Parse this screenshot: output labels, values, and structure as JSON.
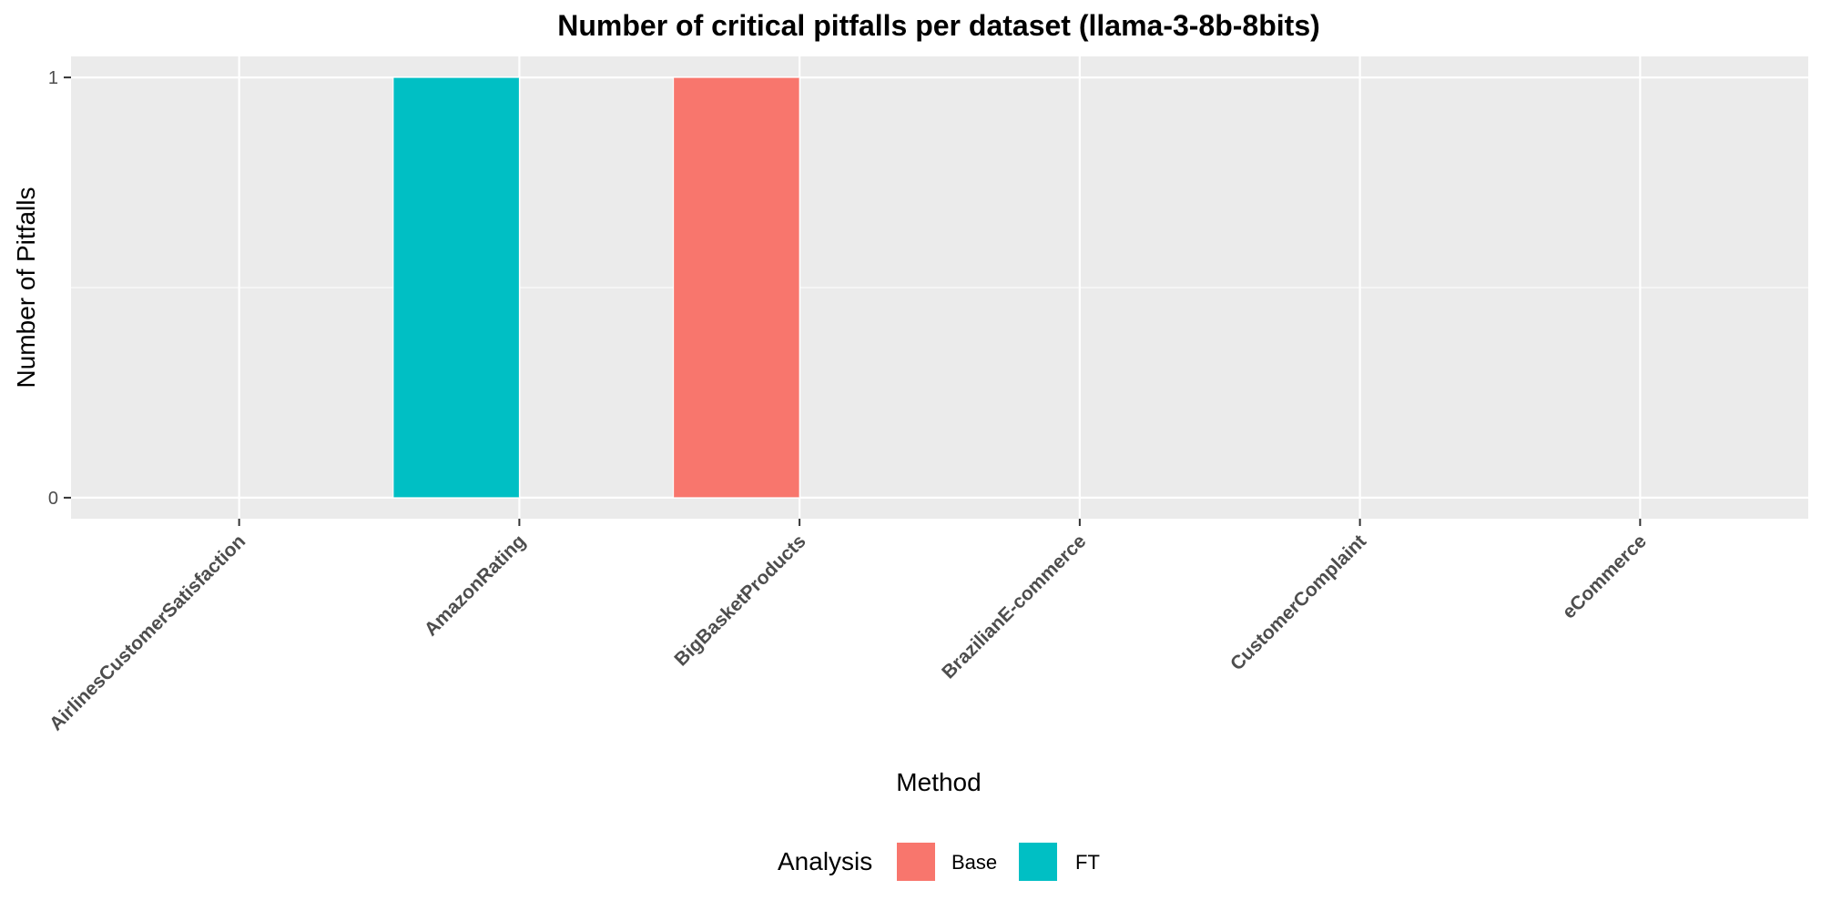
{
  "chart_data": {
    "type": "bar",
    "title": "Number of critical pitfalls per dataset (llama-3-8b-8bits)",
    "xlabel": "Method",
    "ylabel": "Number of Pitfalls",
    "categories": [
      "AirlinesCustomerSatisfaction",
      "AmazonRating",
      "BigBasketProducts",
      "BrazilianE-commerce",
      "CustomerComplaint",
      "eCommerce"
    ],
    "series": [
      {
        "name": "Base",
        "color": "#F8766D",
        "values": [
          0,
          0,
          1,
          0,
          0,
          0
        ]
      },
      {
        "name": "FT",
        "color": "#00BFC4",
        "values": [
          0,
          1,
          0,
          0,
          0,
          0
        ]
      }
    ],
    "yticks": [
      "0",
      "1"
    ],
    "ylim": [
      -0.05,
      1.05
    ],
    "grid": true,
    "panel_background": "#EBEBEB",
    "legend": {
      "title": "Analysis",
      "position": "bottom",
      "items": [
        "Base",
        "FT"
      ]
    }
  }
}
